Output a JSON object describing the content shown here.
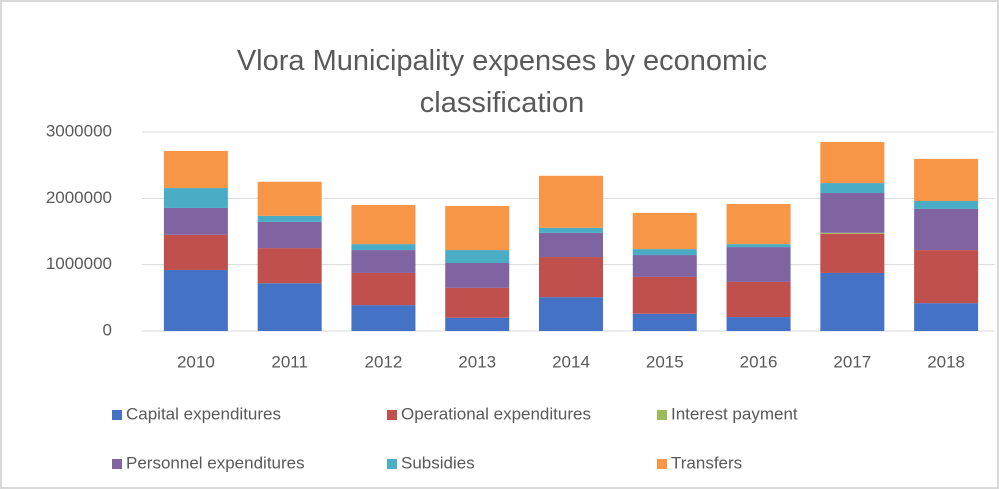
{
  "chart_data": {
    "type": "stacked_bar",
    "title": "Vlora Municipality expenses by economic classification",
    "categories": [
      "2010",
      "2011",
      "2012",
      "2013",
      "2014",
      "2015",
      "2016",
      "2017",
      "2018"
    ],
    "series": [
      {
        "name": "Capital expenditures",
        "color": "#4472c4",
        "values": [
          920000,
          720000,
          390000,
          200000,
          510000,
          260000,
          210000,
          875000,
          420000
        ]
      },
      {
        "name": "Operational expenditures",
        "color": "#c0504d",
        "values": [
          530000,
          530000,
          485000,
          450000,
          605000,
          555000,
          530000,
          590000,
          800000
        ]
      },
      {
        "name": "Interest payment",
        "color": "#9bbb59",
        "values": [
          0,
          0,
          0,
          0,
          0,
          0,
          0,
          15000,
          0
        ]
      },
      {
        "name": "Personnel expenditures",
        "color": "#8064a2",
        "values": [
          405000,
          395000,
          345000,
          375000,
          365000,
          330000,
          525000,
          600000,
          620000
        ]
      },
      {
        "name": "Subsidies",
        "color": "#4bacc6",
        "values": [
          300000,
          90000,
          90000,
          195000,
          75000,
          90000,
          45000,
          150000,
          120000
        ]
      },
      {
        "name": "Transfers",
        "color": "#f79646",
        "values": [
          560000,
          515000,
          590000,
          665000,
          785000,
          545000,
          605000,
          620000,
          635000
        ]
      }
    ],
    "ylim": [
      0,
      3000000
    ],
    "yticks": [
      0,
      1000000,
      2000000,
      3000000
    ],
    "grid": true,
    "legend": "bottom"
  }
}
